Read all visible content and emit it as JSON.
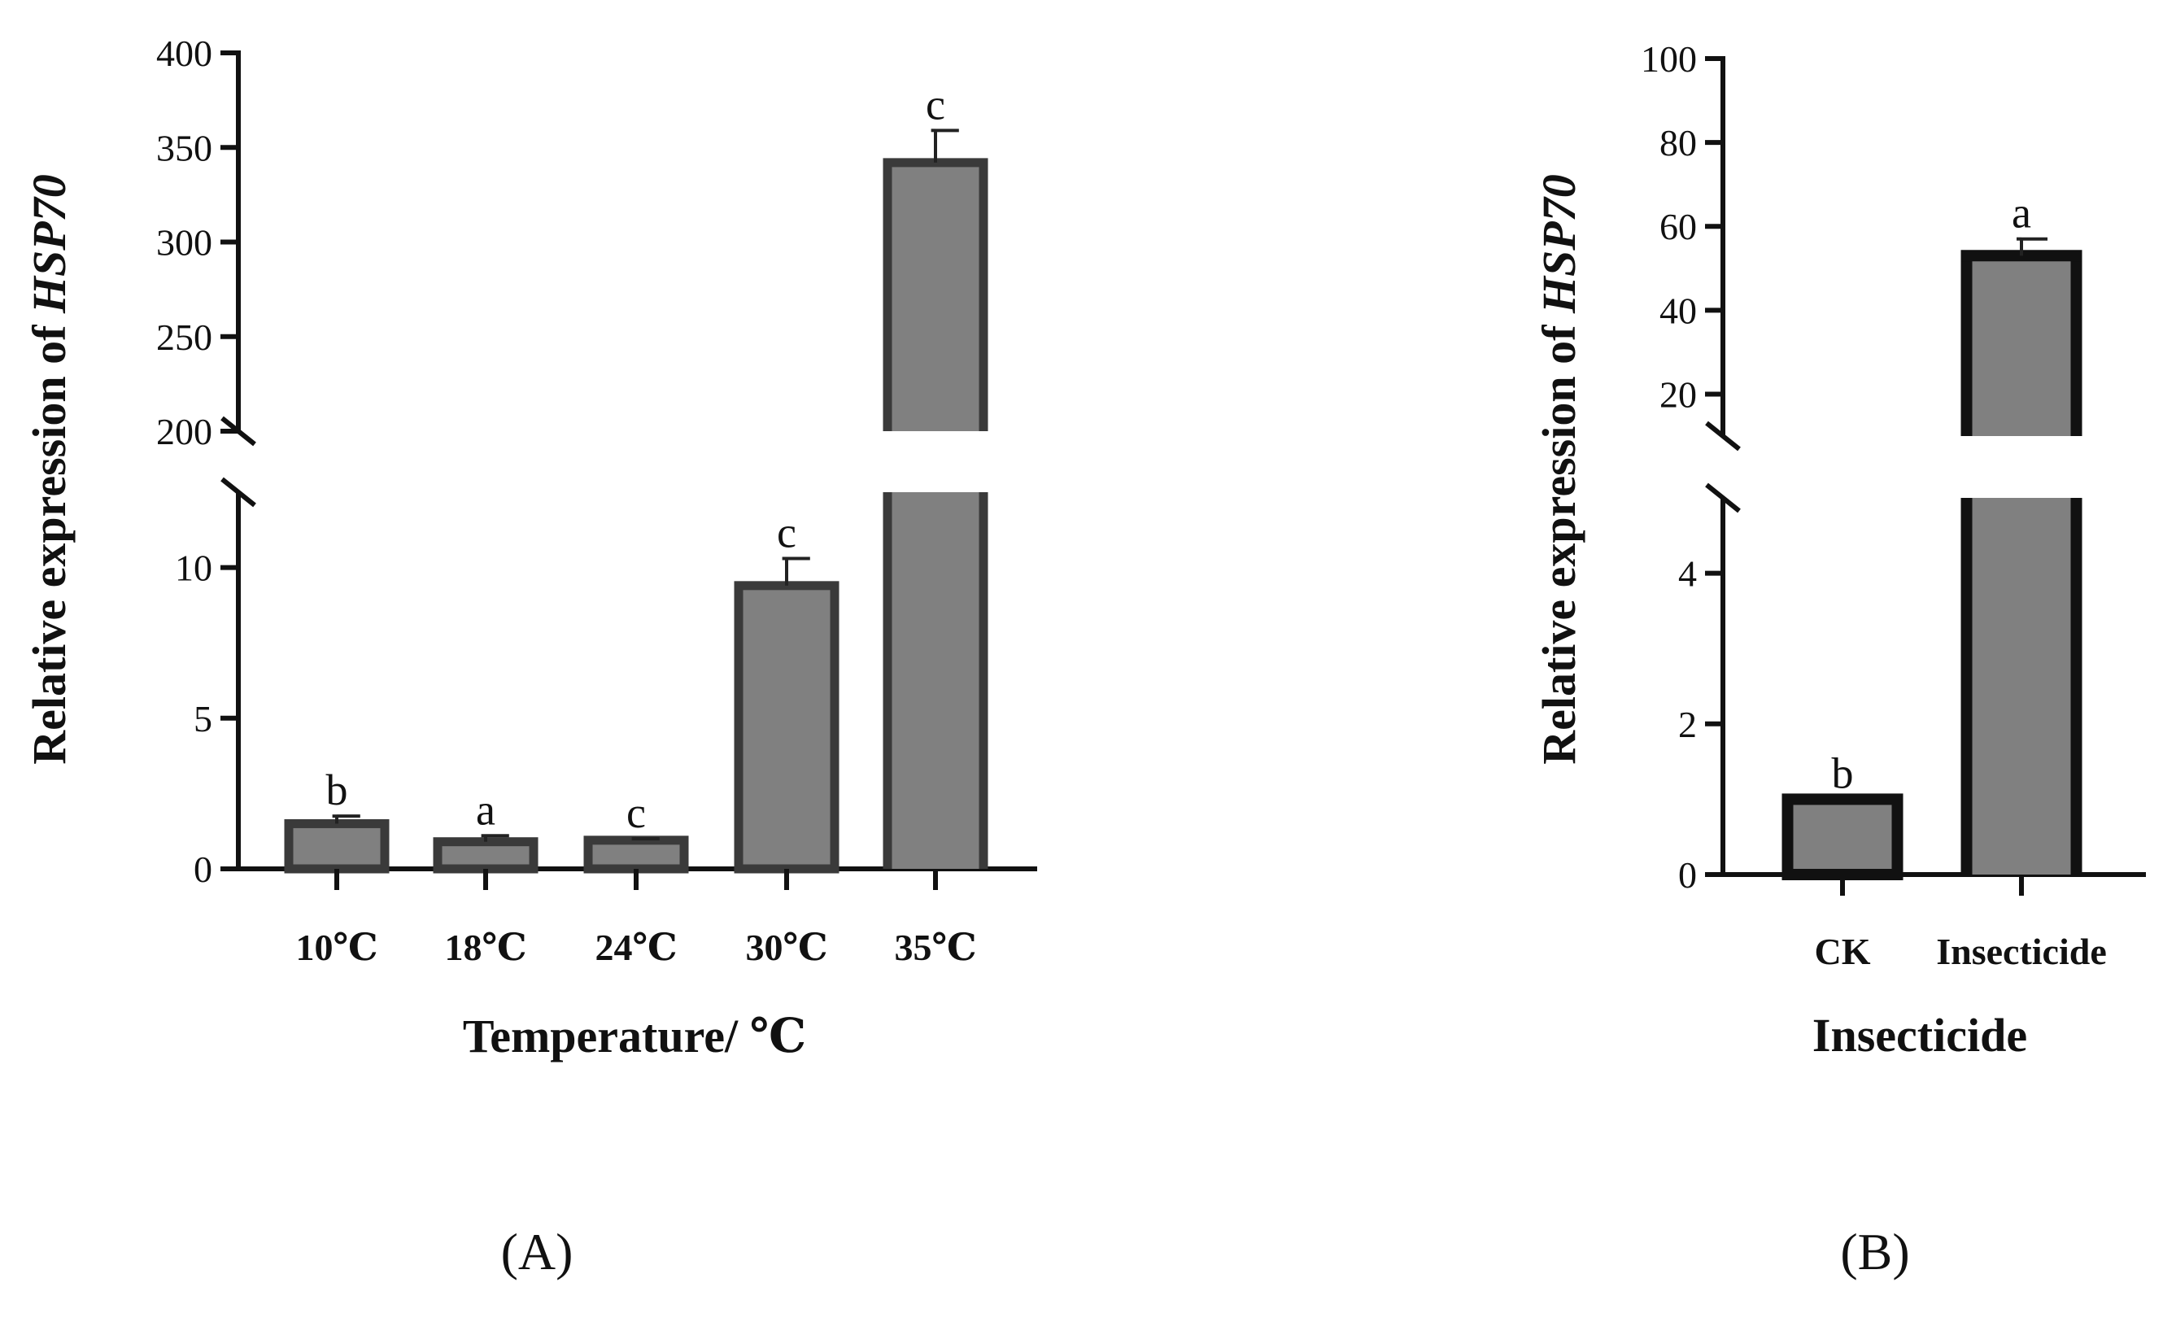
{
  "chart_data": [
    {
      "type": "bar",
      "panel_label": "(A)",
      "xlabel": "Temperature/ ℃",
      "ylabel_prefix": "Relative expression of ",
      "ylabel_gene": "HSP70",
      "categories": [
        "10℃",
        "18℃",
        "24℃",
        "30℃",
        "35℃"
      ],
      "values": [
        1.5,
        0.9,
        0.95,
        9.4,
        342
      ],
      "errors": [
        0.25,
        0.2,
        0.05,
        0.9,
        17
      ],
      "letters": [
        "b",
        "a",
        "c",
        "c",
        "c"
      ],
      "axis_break": true,
      "y_lower": {
        "range": [
          0,
          12.5
        ],
        "ticks": [
          0,
          5,
          10
        ]
      },
      "y_upper": {
        "range": [
          200,
          400
        ],
        "ticks": [
          200,
          250,
          300,
          350,
          400
        ]
      },
      "bar_color": "#808080",
      "edge_color": "#3a3a3a"
    },
    {
      "type": "bar",
      "panel_label": "(B)",
      "xlabel": "Insecticide",
      "ylabel_prefix": "Relative expression of ",
      "ylabel_gene": "HSP70",
      "categories": [
        "CK",
        "Insecticide"
      ],
      "values": [
        1,
        53
      ],
      "errors": [
        0,
        4
      ],
      "letters": [
        "b",
        "a"
      ],
      "axis_break": true,
      "y_lower": {
        "range": [
          0,
          5
        ],
        "ticks": [
          0,
          2,
          4
        ]
      },
      "y_upper": {
        "range": [
          10,
          100
        ],
        "ticks": [
          20,
          40,
          60,
          80,
          100
        ]
      },
      "bar_color": "#808080",
      "edge_color": "#111111"
    }
  ]
}
